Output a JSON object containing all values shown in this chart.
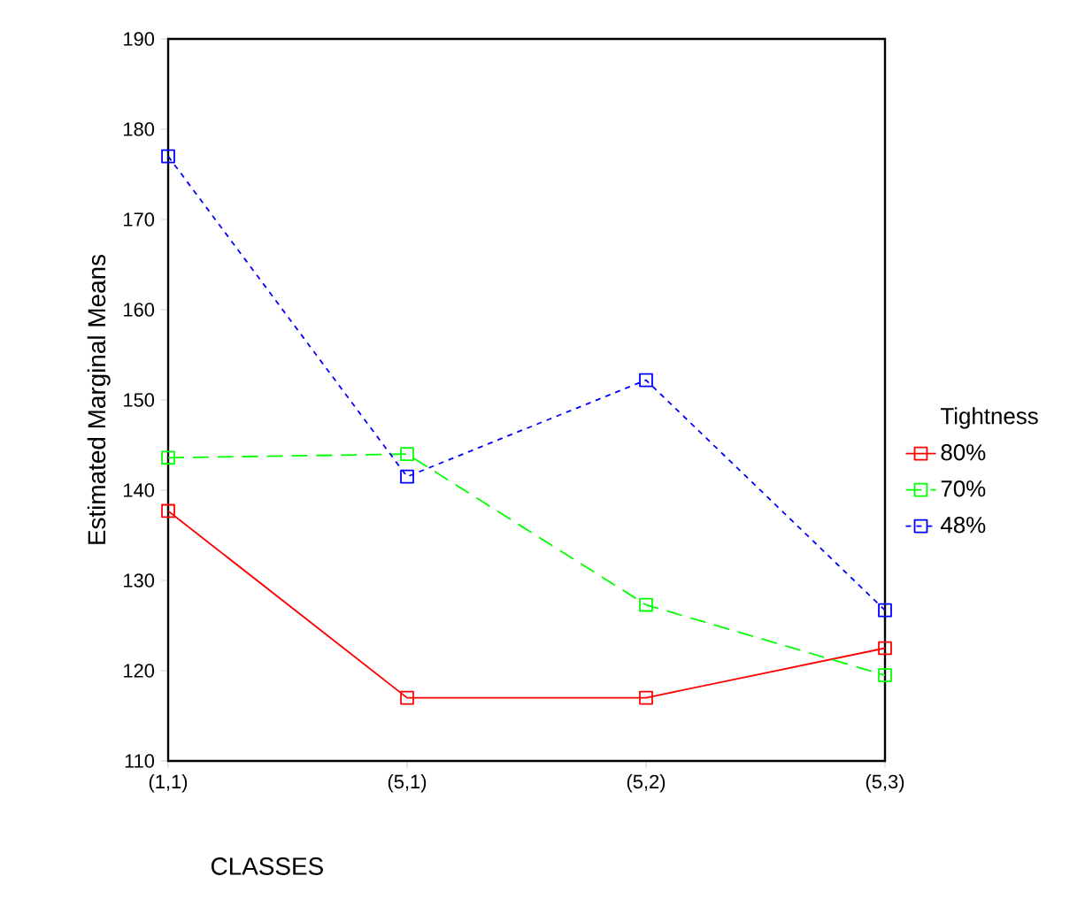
{
  "chart_data": {
    "type": "line",
    "xlabel": "CLASSES",
    "ylabel": "Estimated Marginal Means",
    "legend_title": "Tightness",
    "categories": [
      "(1,1)",
      "(5,1)",
      "(5,2)",
      "(5,3)"
    ],
    "series": [
      {
        "name": "80%",
        "color": "#ff0000",
        "line_style": "solid",
        "values": [
          137.7,
          117,
          117,
          122.5
        ]
      },
      {
        "name": "70%",
        "color": "#00ff00",
        "line_style": "dashed",
        "values": [
          143.6,
          144,
          127.3,
          119.5
        ]
      },
      {
        "name": "48%",
        "color": "#0000ff",
        "line_style": "dotted",
        "values": [
          177,
          141.5,
          152.2,
          126.7
        ]
      }
    ],
    "ylim": [
      110,
      190
    ],
    "yticks": [
      110,
      120,
      130,
      140,
      150,
      160,
      170,
      180,
      190
    ],
    "marker": "square",
    "grid": false,
    "legend": "right"
  }
}
